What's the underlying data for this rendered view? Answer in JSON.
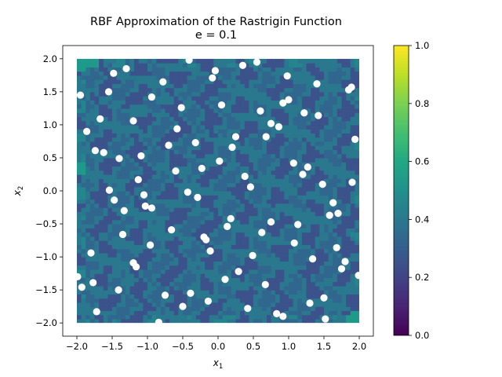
{
  "chart_data": {
    "type": "heatmap",
    "title": "RBF Approximation of the Rastrigin Function",
    "subtitle": "e = 0.1",
    "xlabel_base": "x",
    "xlabel_sub": "1",
    "ylabel_base": "x",
    "ylabel_sub": "2",
    "xlim": [
      -2.2,
      2.2
    ],
    "ylim": [
      -2.2,
      2.2
    ],
    "xticks": [
      -2.0,
      -1.5,
      -1.0,
      -0.5,
      0.0,
      0.5,
      1.0,
      1.5,
      2.0
    ],
    "xtick_labels": [
      "−2.0",
      "−1.5",
      "−1.0",
      "−0.5",
      "0.0",
      "0.5",
      "1.0",
      "1.5",
      "2.0"
    ],
    "yticks": [
      -2.0,
      -1.5,
      -1.0,
      -0.5,
      0.0,
      0.5,
      1.0,
      1.5,
      2.0
    ],
    "ytick_labels": [
      "−2.0",
      "−1.5",
      "−1.0",
      "−0.5",
      "0.0",
      "0.5",
      "1.0",
      "1.5",
      "2.0"
    ],
    "domain": [
      -2.0,
      2.0
    ],
    "colorbar": {
      "range": [
        0.0,
        1.0
      ],
      "ticks": [
        0.0,
        0.2,
        0.4,
        0.6,
        0.8,
        1.0
      ],
      "tick_labels": [
        "0.0",
        "0.2",
        "0.4",
        "0.6",
        "0.8",
        "1.0"
      ],
      "colormap": "viridis"
    },
    "surface_color_levels": [
      "#31678e",
      "#3b528b",
      "#2a788e",
      "#25858e",
      "#1f9a8a",
      "#29af7f"
    ],
    "sample_points": [
      [
        -1.95,
        1.45
      ],
      [
        -1.86,
        0.9
      ],
      [
        -1.67,
        1.09
      ],
      [
        -1.48,
        1.78
      ],
      [
        -1.55,
        1.5
      ],
      [
        -1.3,
        1.85
      ],
      [
        -1.74,
        0.61
      ],
      [
        -1.62,
        0.58
      ],
      [
        -1.4,
        0.49
      ],
      [
        -1.2,
        1.06
      ],
      [
        -0.94,
        1.42
      ],
      [
        -0.78,
        1.65
      ],
      [
        -0.52,
        1.26
      ],
      [
        -0.41,
        1.98
      ],
      [
        -0.08,
        1.71
      ],
      [
        -0.04,
        1.82
      ],
      [
        0.05,
        1.3
      ],
      [
        0.35,
        1.9
      ],
      [
        0.55,
        1.95
      ],
      [
        0.98,
        1.74
      ],
      [
        1.4,
        1.62
      ],
      [
        1.85,
        1.53
      ],
      [
        1.89,
        1.57
      ],
      [
        0.6,
        1.21
      ],
      [
        0.75,
        1.02
      ],
      [
        0.92,
        1.33
      ],
      [
        1.0,
        1.38
      ],
      [
        1.22,
        1.18
      ],
      [
        1.42,
        1.14
      ],
      [
        0.68,
        0.82
      ],
      [
        0.86,
        0.97
      ],
      [
        0.2,
        0.66
      ],
      [
        0.25,
        0.82
      ],
      [
        -0.58,
        0.94
      ],
      [
        -0.7,
        0.69
      ],
      [
        -0.32,
        0.73
      ],
      [
        -0.6,
        0.3
      ],
      [
        -0.23,
        0.34
      ],
      [
        0.02,
        0.45
      ],
      [
        -1.09,
        0.53
      ],
      [
        -1.54,
        0.01
      ],
      [
        -1.47,
        -0.14
      ],
      [
        -1.13,
        0.17
      ],
      [
        -1.05,
        -0.06
      ],
      [
        -1.03,
        -0.23
      ],
      [
        -0.94,
        -0.26
      ],
      [
        -0.43,
        -0.02
      ],
      [
        -0.29,
        -0.1
      ],
      [
        0.38,
        0.22
      ],
      [
        0.46,
        0.06
      ],
      [
        1.07,
        0.42
      ],
      [
        1.2,
        0.25
      ],
      [
        1.27,
        0.36
      ],
      [
        1.48,
        0.1
      ],
      [
        1.94,
        0.78
      ],
      [
        1.9,
        0.13
      ],
      [
        1.63,
        -0.18
      ],
      [
        1.58,
        -0.37
      ],
      [
        1.7,
        -0.34
      ],
      [
        1.13,
        -0.51
      ],
      [
        0.75,
        -0.47
      ],
      [
        0.62,
        -0.63
      ],
      [
        0.18,
        -0.42
      ],
      [
        0.13,
        -0.54
      ],
      [
        -0.66,
        -0.59
      ],
      [
        -1.33,
        -0.3
      ],
      [
        -1.35,
        -0.66
      ],
      [
        -0.96,
        -0.82
      ],
      [
        -0.2,
        -0.7
      ],
      [
        -0.17,
        -0.74
      ],
      [
        -0.11,
        -0.91
      ],
      [
        0.49,
        -0.98
      ],
      [
        1.08,
        -0.79
      ],
      [
        1.68,
        -0.86
      ],
      [
        1.8,
        -1.07
      ],
      [
        1.34,
        -1.03
      ],
      [
        1.75,
        -1.18
      ],
      [
        1.99,
        -1.28
      ],
      [
        -1.8,
        -0.94
      ],
      [
        -1.2,
        -1.09
      ],
      [
        -1.16,
        -1.15
      ],
      [
        0.29,
        -1.22
      ],
      [
        0.1,
        -1.34
      ],
      [
        -1.99,
        -1.3
      ],
      [
        -1.93,
        -1.46
      ],
      [
        -1.77,
        -1.39
      ],
      [
        -1.41,
        -1.5
      ],
      [
        -0.75,
        -1.58
      ],
      [
        -0.39,
        -1.55
      ],
      [
        -0.5,
        -1.75
      ],
      [
        -0.14,
        -1.67
      ],
      [
        0.67,
        -1.42
      ],
      [
        0.42,
        -1.78
      ],
      [
        0.83,
        -1.86
      ],
      [
        0.92,
        -1.9
      ],
      [
        1.3,
        -1.7
      ],
      [
        1.5,
        -1.62
      ],
      [
        -1.72,
        -1.83
      ],
      [
        -0.84,
        -1.99
      ],
      [
        1.52,
        -1.94
      ]
    ]
  }
}
